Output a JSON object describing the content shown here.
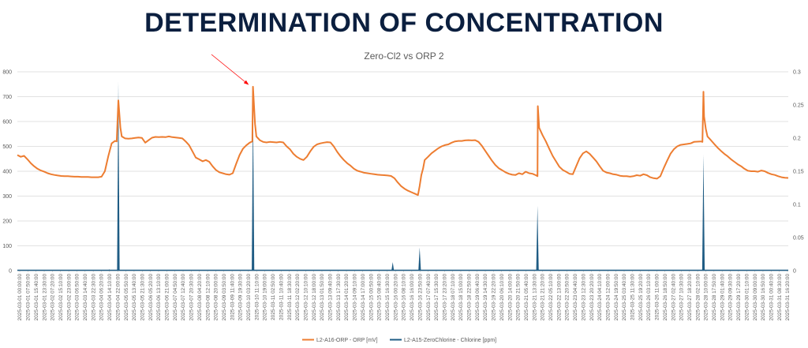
{
  "slide": {
    "title": "DETERMINATION OF CONCENTRATION"
  },
  "chart_data": {
    "type": "line",
    "title": "Zero-Cl2 vs ORP 2",
    "y_left": {
      "min": 0,
      "max": 800,
      "ticks": [
        "0",
        "100",
        "200",
        "300",
        "400",
        "500",
        "600",
        "700",
        "800"
      ]
    },
    "y_right": {
      "min": 0,
      "max": 0.3,
      "ticks": [
        "0",
        "0.05",
        "0.1",
        "0.15",
        "0.2",
        "0.25",
        "0.3"
      ]
    },
    "x_labels": [
      "2025-03-01 00:00:00",
      "2025-03-01 07:50:00",
      "2025-03-01 15:40:00",
      "2025-03-01 23:30:00",
      "2025-03-02 07:20:00",
      "2025-03-02 15:10:00",
      "2025-03-02 23:00:00",
      "2025-03-03 06:50:00",
      "2025-03-03 14:40:00",
      "2025-03-03 22:30:00",
      "2025-03-04 06:20:00",
      "2025-03-04 14:10:00",
      "2025-03-04 22:00:00",
      "2025-03-05 05:50:00",
      "2025-03-05 13:40:00",
      "2025-03-05 21:30:00",
      "2025-03-06 05:20:00",
      "2025-03-06 13:10:00",
      "2025-03-06 21:00:00",
      "2025-03-07 04:50:00",
      "2025-03-07 12:40:00",
      "2025-03-07 20:30:00",
      "2025-03-08 04:20:00",
      "2025-03-08 12:10:00",
      "2025-03-08 20:00:00",
      "2025-03-09 03:50:00",
      "2025-03-09 11:40:00",
      "2025-03-09 19:30:00",
      "2025-03-10 03:20:00",
      "2025-03-10 11:10:00",
      "2025-03-10 19:00:00",
      "2025-03-11 02:50:00",
      "2025-03-11 10:40:00",
      "2025-03-11 18:30:00",
      "2025-03-12 02:20:00",
      "2025-03-12 10:10:00",
      "2025-03-12 18:00:00",
      "2025-03-13 01:50:00",
      "2025-03-13 09:40:00",
      "2025-03-13 17:30:00",
      "2025-03-14 01:20:00",
      "2025-03-14 09:10:00",
      "2025-03-14 17:00:00",
      "2025-03-15 00:50:00",
      "2025-03-15 08:40:00",
      "2025-03-15 16:30:00",
      "2025-03-16 00:20:00",
      "2025-03-16 08:10:00",
      "2025-03-16 16:00:00",
      "2025-03-16 23:50:00",
      "2025-03-17 07:40:00",
      "2025-03-17 15:30:00",
      "2025-03-17 23:20:00",
      "2025-03-18 07:10:00",
      "2025-03-18 15:00:00",
      "2025-03-18 22:50:00",
      "2025-03-19 06:40:00",
      "2025-03-19 14:30:00",
      "2025-03-19 22:20:00",
      "2025-03-20 06:10:00",
      "2025-03-20 14:00:00",
      "2025-03-20 21:50:00",
      "2025-03-21 05:40:00",
      "2025-03-21 13:30:00",
      "2025-03-21 21:20:00",
      "2025-03-22 05:10:00",
      "2025-03-22 13:00:00",
      "2025-03-22 20:50:00",
      "2025-03-23 04:40:00",
      "2025-03-23 12:30:00",
      "2025-03-23 20:20:00",
      "2025-03-24 04:10:00",
      "2025-03-24 12:00:00",
      "2025-03-24 19:50:00",
      "2025-03-25 03:40:00",
      "2025-03-25 11:30:00",
      "2025-03-25 19:20:00",
      "2025-03-26 03:10:00",
      "2025-03-26 11:00:00",
      "2025-03-26 18:50:00",
      "2025-03-27 02:40:00",
      "2025-03-27 10:30:00",
      "2025-03-27 18:20:00",
      "2025-03-28 02:10:00",
      "2025-03-28 10:00:00",
      "2025-03-28 17:50:00",
      "2025-03-29 01:40:00",
      "2025-03-29 09:30:00",
      "2025-03-29 17:20:00",
      "2025-03-30 01:10:00",
      "2025-03-30 09:00:00",
      "2025-03-30 16:50:00",
      "2025-03-31 00:40:00",
      "2025-03-31 08:30:00",
      "2025-03-31 16:20:00"
    ],
    "series": [
      {
        "name": "L2-A16-ORP - ORP [mV]",
        "axis": "left",
        "color": "#ed7d31",
        "points": [
          [
            0,
            465
          ],
          [
            1,
            458
          ],
          [
            2,
            462
          ],
          [
            3,
            448
          ],
          [
            4,
            432
          ],
          [
            5,
            420
          ],
          [
            6,
            410
          ],
          [
            7,
            403
          ],
          [
            8,
            398
          ],
          [
            9,
            392
          ],
          [
            10,
            388
          ],
          [
            11,
            385
          ],
          [
            12,
            383
          ],
          [
            13,
            381
          ],
          [
            14,
            380
          ],
          [
            15,
            380
          ],
          [
            16,
            379
          ],
          [
            17,
            378
          ],
          [
            18,
            378
          ],
          [
            19,
            377
          ],
          [
            20,
            377
          ],
          [
            21,
            377
          ],
          [
            22,
            376
          ],
          [
            23,
            376
          ],
          [
            24,
            376
          ],
          [
            25,
            378
          ],
          [
            26,
            400
          ],
          [
            27,
            460
          ],
          [
            28,
            512
          ],
          [
            29,
            522
          ],
          [
            29.5,
            520
          ],
          [
            30,
            685
          ],
          [
            30.6,
            575
          ],
          [
            31,
            540
          ],
          [
            32,
            532
          ],
          [
            33,
            531
          ],
          [
            34,
            532
          ],
          [
            35,
            534
          ],
          [
            36,
            536
          ],
          [
            37,
            534
          ],
          [
            38,
            515
          ],
          [
            39,
            525
          ],
          [
            40,
            535
          ],
          [
            41,
            538
          ],
          [
            42,
            537
          ],
          [
            43,
            538
          ],
          [
            44,
            537
          ],
          [
            45,
            540
          ],
          [
            46,
            537
          ],
          [
            47,
            536
          ],
          [
            48,
            534
          ],
          [
            49,
            532
          ],
          [
            50,
            520
          ],
          [
            51,
            505
          ],
          [
            52,
            480
          ],
          [
            53,
            455
          ],
          [
            54,
            448
          ],
          [
            55,
            440
          ],
          [
            56,
            445
          ],
          [
            57,
            438
          ],
          [
            58,
            420
          ],
          [
            59,
            405
          ],
          [
            60,
            396
          ],
          [
            61,
            392
          ],
          [
            62,
            388
          ],
          [
            63,
            386
          ],
          [
            64,
            392
          ],
          [
            65,
            430
          ],
          [
            66,
            465
          ],
          [
            67,
            490
          ],
          [
            68,
            504
          ],
          [
            69,
            515
          ],
          [
            69.8,
            520
          ],
          [
            70,
            740
          ],
          [
            70.6,
            590
          ],
          [
            71,
            540
          ],
          [
            72,
            525
          ],
          [
            73,
            518
          ],
          [
            74,
            516
          ],
          [
            75,
            518
          ],
          [
            76,
            517
          ],
          [
            77,
            516
          ],
          [
            78,
            518
          ],
          [
            79,
            516
          ],
          [
            80,
            500
          ],
          [
            81,
            488
          ],
          [
            82,
            470
          ],
          [
            83,
            458
          ],
          [
            84,
            450
          ],
          [
            85,
            445
          ],
          [
            86,
            458
          ],
          [
            87,
            480
          ],
          [
            88,
            498
          ],
          [
            89,
            508
          ],
          [
            90,
            512
          ],
          [
            91,
            515
          ],
          [
            92,
            517
          ],
          [
            93,
            516
          ],
          [
            94,
            500
          ],
          [
            95,
            478
          ],
          [
            96,
            460
          ],
          [
            97,
            445
          ],
          [
            98,
            432
          ],
          [
            99,
            422
          ],
          [
            100,
            410
          ],
          [
            101,
            402
          ],
          [
            102,
            398
          ],
          [
            103,
            394
          ],
          [
            104,
            392
          ],
          [
            105,
            390
          ],
          [
            106,
            388
          ],
          [
            107,
            386
          ],
          [
            108,
            385
          ],
          [
            109,
            384
          ],
          [
            110,
            383
          ],
          [
            111,
            381
          ],
          [
            112,
            372
          ],
          [
            113,
            355
          ],
          [
            114,
            340
          ],
          [
            115,
            330
          ],
          [
            116,
            322
          ],
          [
            117,
            316
          ],
          [
            118,
            310
          ],
          [
            119,
            304
          ],
          [
            119.5,
            340
          ],
          [
            120,
            385
          ],
          [
            120.5,
            410
          ],
          [
            121,
            445
          ],
          [
            122,
            458
          ],
          [
            123,
            472
          ],
          [
            124,
            482
          ],
          [
            125,
            492
          ],
          [
            126,
            500
          ],
          [
            127,
            505
          ],
          [
            128,
            508
          ],
          [
            129,
            515
          ],
          [
            130,
            520
          ],
          [
            131,
            522
          ],
          [
            132,
            522
          ],
          [
            133,
            524
          ],
          [
            134,
            525
          ],
          [
            135,
            524
          ],
          [
            136,
            525
          ],
          [
            137,
            518
          ],
          [
            138,
            502
          ],
          [
            139,
            482
          ],
          [
            140,
            462
          ],
          [
            141,
            442
          ],
          [
            142,
            425
          ],
          [
            143,
            412
          ],
          [
            144,
            404
          ],
          [
            145,
            396
          ],
          [
            146,
            390
          ],
          [
            147,
            386
          ],
          [
            148,
            385
          ],
          [
            149,
            392
          ],
          [
            150,
            388
          ],
          [
            151,
            398
          ],
          [
            152,
            392
          ],
          [
            153,
            390
          ],
          [
            154,
            384
          ],
          [
            154.5,
            380
          ],
          [
            154.6,
            662
          ],
          [
            155,
            575
          ],
          [
            156,
            545
          ],
          [
            157,
            520
          ],
          [
            158,
            490
          ],
          [
            159,
            462
          ],
          [
            160,
            440
          ],
          [
            161,
            418
          ],
          [
            162,
            405
          ],
          [
            163,
            398
          ],
          [
            164,
            390
          ],
          [
            165,
            388
          ],
          [
            166,
            420
          ],
          [
            167,
            452
          ],
          [
            168,
            472
          ],
          [
            169,
            480
          ],
          [
            170,
            470
          ],
          [
            171,
            455
          ],
          [
            172,
            440
          ],
          [
            173,
            420
          ],
          [
            174,
            402
          ],
          [
            175,
            395
          ],
          [
            176,
            392
          ],
          [
            177,
            388
          ],
          [
            178,
            386
          ],
          [
            179,
            382
          ],
          [
            180,
            380
          ],
          [
            181,
            380
          ],
          [
            182,
            378
          ],
          [
            183,
            380
          ],
          [
            184,
            384
          ],
          [
            185,
            382
          ],
          [
            186,
            388
          ],
          [
            187,
            384
          ],
          [
            188,
            376
          ],
          [
            189,
            372
          ],
          [
            190,
            370
          ],
          [
            191,
            380
          ],
          [
            192,
            412
          ],
          [
            193,
            442
          ],
          [
            194,
            470
          ],
          [
            195,
            488
          ],
          [
            196,
            500
          ],
          [
            197,
            506
          ],
          [
            198,
            508
          ],
          [
            199,
            510
          ],
          [
            200,
            512
          ],
          [
            201,
            518
          ],
          [
            202,
            519
          ],
          [
            203,
            520
          ],
          [
            203.5,
            518
          ],
          [
            203.8,
            720
          ],
          [
            204,
            620
          ],
          [
            204.5,
            570
          ],
          [
            205,
            540
          ],
          [
            206,
            525
          ],
          [
            207,
            510
          ],
          [
            208,
            495
          ],
          [
            209,
            482
          ],
          [
            210,
            470
          ],
          [
            211,
            460
          ],
          [
            212,
            448
          ],
          [
            213,
            438
          ],
          [
            214,
            428
          ],
          [
            215,
            420
          ],
          [
            216,
            410
          ],
          [
            217,
            402
          ],
          [
            218,
            400
          ],
          [
            219,
            400
          ],
          [
            220,
            398
          ],
          [
            221,
            403
          ],
          [
            222,
            400
          ],
          [
            223,
            393
          ],
          [
            224,
            388
          ],
          [
            225,
            385
          ],
          [
            226,
            380
          ],
          [
            227,
            376
          ],
          [
            228,
            374
          ],
          [
            229,
            373
          ]
        ]
      },
      {
        "name": "L2-A15-ZeroChlorine - Chlorine [ppm]",
        "axis": "right",
        "color": "#1f5c84",
        "spikes": [
          {
            "x": 27.3,
            "value": 0.002
          },
          {
            "x": 30.0,
            "value": 0.285
          },
          {
            "x": 70.0,
            "value": 0.245
          },
          {
            "x": 111.5,
            "value": 0.013
          },
          {
            "x": 119.5,
            "value": 0.035
          },
          {
            "x": 154.5,
            "value": 0.098
          },
          {
            "x": 203.8,
            "value": 0.175
          }
        ]
      }
    ],
    "legend_position": "bottom",
    "annotation": {
      "type": "arrow",
      "target": "ORP peak on 2025-03-11",
      "color": "#ff0000"
    },
    "gridlines": true
  }
}
